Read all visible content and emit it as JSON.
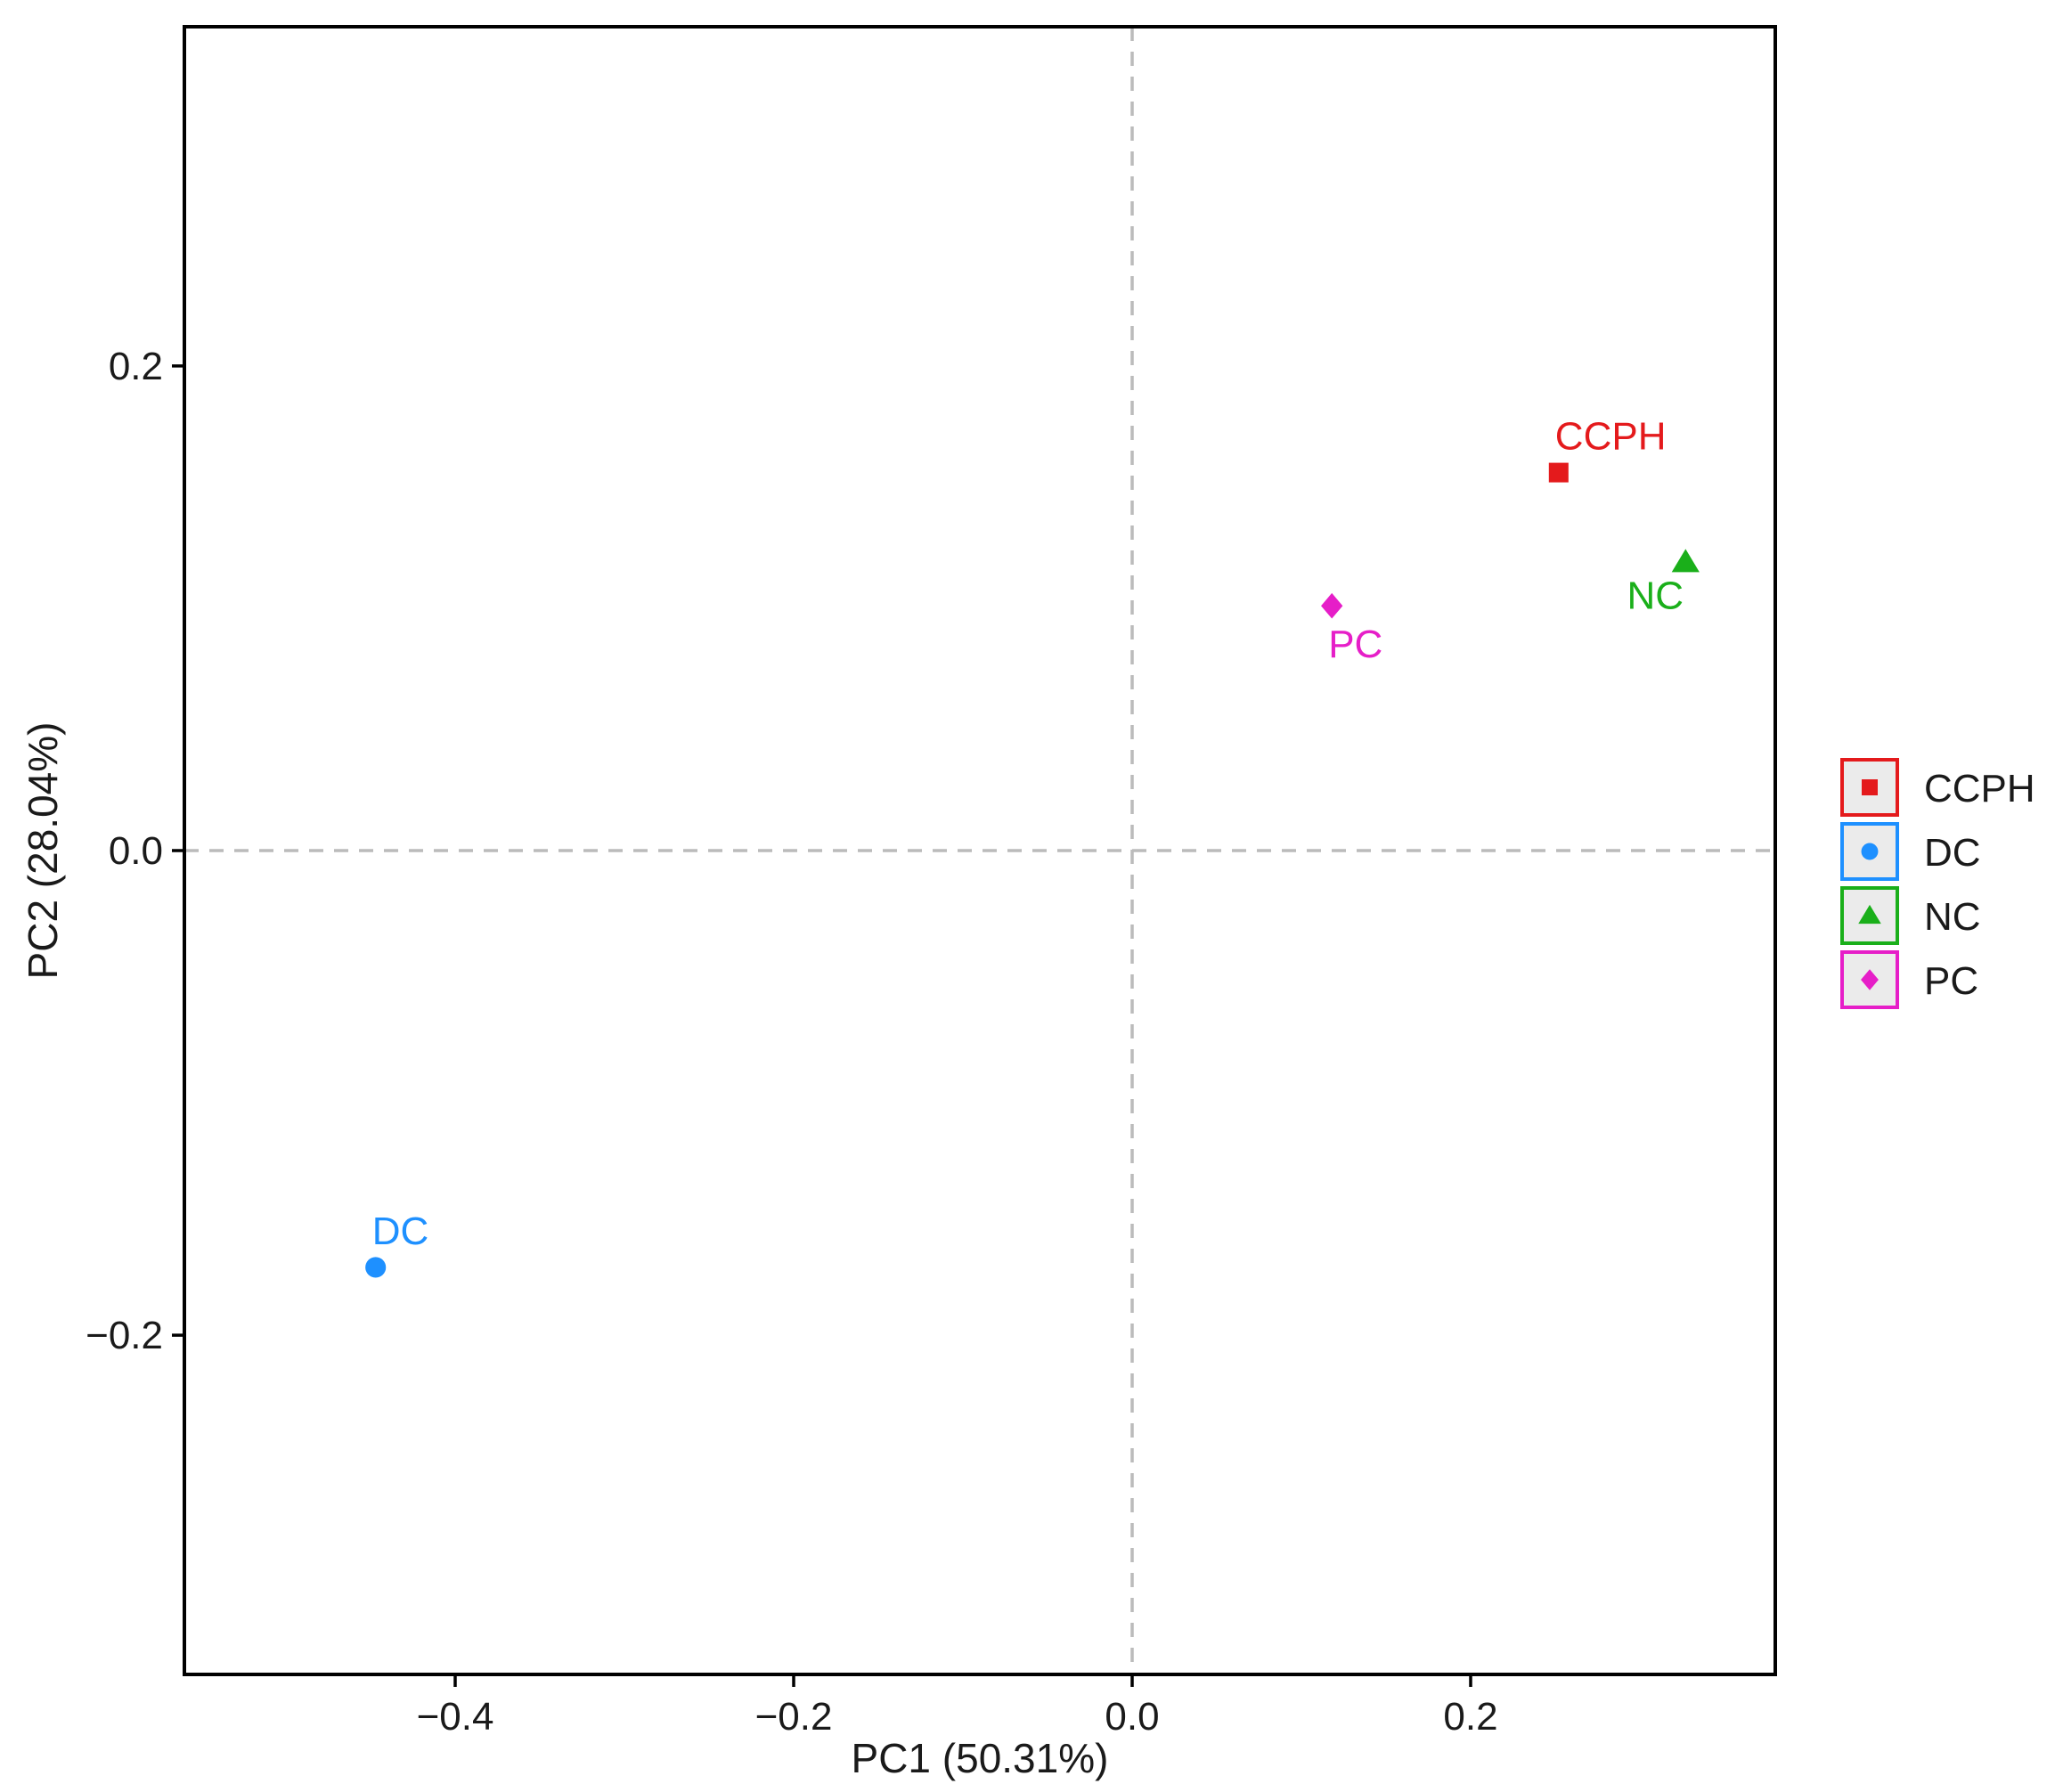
{
  "chart_data": {
    "type": "scatter",
    "xlabel": "PC1 (50.31%)",
    "ylabel": "PC2 (28.04%)",
    "xlim": [
      -0.56,
      0.38
    ],
    "ylim": [
      -0.34,
      0.34
    ],
    "xticks": [
      {
        "value": -0.4,
        "label": "−0.4"
      },
      {
        "value": -0.2,
        "label": "−0.2"
      },
      {
        "value": 0.0,
        "label": "0.0"
      },
      {
        "value": 0.2,
        "label": "0.2"
      }
    ],
    "yticks": [
      {
        "value": 0.2,
        "label": "0.2"
      },
      {
        "value": 0.0,
        "label": "0.0"
      },
      {
        "value": -0.2,
        "label": "−0.2"
      }
    ],
    "reference_lines": {
      "x": 0,
      "y": 0,
      "style": "dashed",
      "color": "#bbbbbb"
    },
    "grid": false,
    "legend_position": "right",
    "points": [
      {
        "name": "CCPH",
        "x": 0.252,
        "y": 0.156,
        "color": "#e41a1c",
        "shape": "square",
        "label_position": "above-right"
      },
      {
        "name": "DC",
        "x": -0.447,
        "y": -0.172,
        "color": "#1e90ff",
        "shape": "circle",
        "label_position": "above-right"
      },
      {
        "name": "NC",
        "x": 0.327,
        "y": 0.119,
        "color": "#1aaf1a",
        "shape": "triangle",
        "label_position": "below-left"
      },
      {
        "name": "PC",
        "x": 0.118,
        "y": 0.101,
        "color": "#e61ec8",
        "shape": "diamond",
        "label_position": "below-right"
      }
    ],
    "legend": [
      {
        "label": "CCPH",
        "color": "#e41a1c",
        "shape": "square"
      },
      {
        "label": "DC",
        "color": "#1e90ff",
        "shape": "circle"
      },
      {
        "label": "NC",
        "color": "#1aaf1a",
        "shape": "triangle"
      },
      {
        "label": "PC",
        "color": "#e61ec8",
        "shape": "diamond"
      }
    ]
  }
}
